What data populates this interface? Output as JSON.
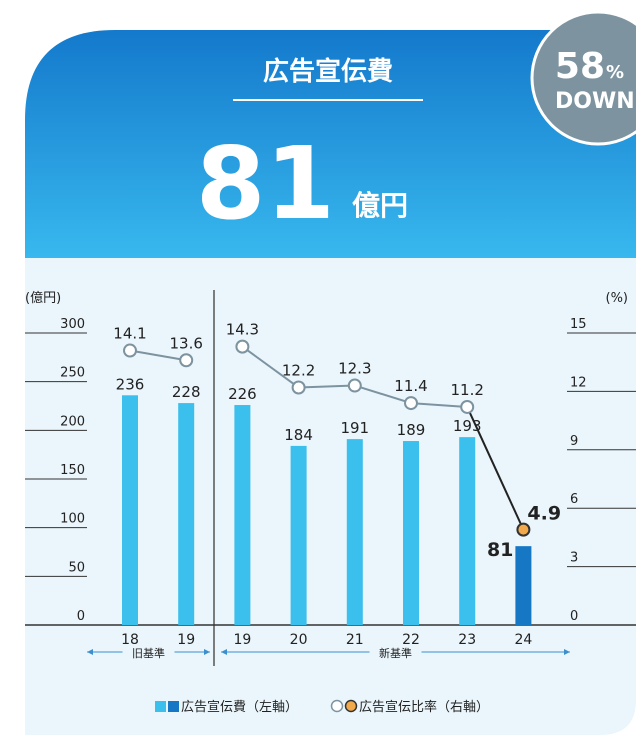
{
  "header": {
    "title": "広告宣伝費",
    "value": "81",
    "unit": "億円"
  },
  "badge": {
    "value": "58",
    "unit": "%",
    "text": "DOWN"
  },
  "chart_data": {
    "type": "bar_line",
    "y_label": "(億円)",
    "y2_label": "(%)",
    "ylim": [
      0,
      300
    ],
    "yticks": [
      0,
      50,
      100,
      150,
      200,
      250,
      300
    ],
    "y2lim": [
      0,
      15
    ],
    "y2ticks": [
      0,
      3,
      6,
      9,
      12,
      15
    ],
    "bar_color": "#3bbfec",
    "line_color": "#7d939f",
    "groups": [
      {
        "name": "旧基準",
        "categories": [
          "18",
          "19"
        ],
        "bars": [
          236,
          228
        ],
        "bar_colors": [
          "#3bbfec",
          "#3bbfec"
        ],
        "line": [
          14.1,
          13.6
        ],
        "dot_colors": [
          "#ffffff",
          "#ffffff"
        ]
      },
      {
        "name": "新基準",
        "categories": [
          "19",
          "20",
          "21",
          "22",
          "23",
          "24"
        ],
        "bars": [
          226,
          184,
          191,
          189,
          193,
          81
        ],
        "bar_colors": [
          "#3bbfec",
          "#3bbfec",
          "#3bbfec",
          "#3bbfec",
          "#3bbfec",
          "#1677c4"
        ],
        "line": [
          14.3,
          12.2,
          12.3,
          11.4,
          11.2,
          4.9
        ],
        "dot_colors": [
          "#ffffff",
          "#ffffff",
          "#ffffff",
          "#ffffff",
          "#ffffff",
          "#f2a94b"
        ]
      }
    ],
    "legend": [
      "広告宣伝費（左軸）",
      "広告宣伝比率（右軸）"
    ]
  }
}
